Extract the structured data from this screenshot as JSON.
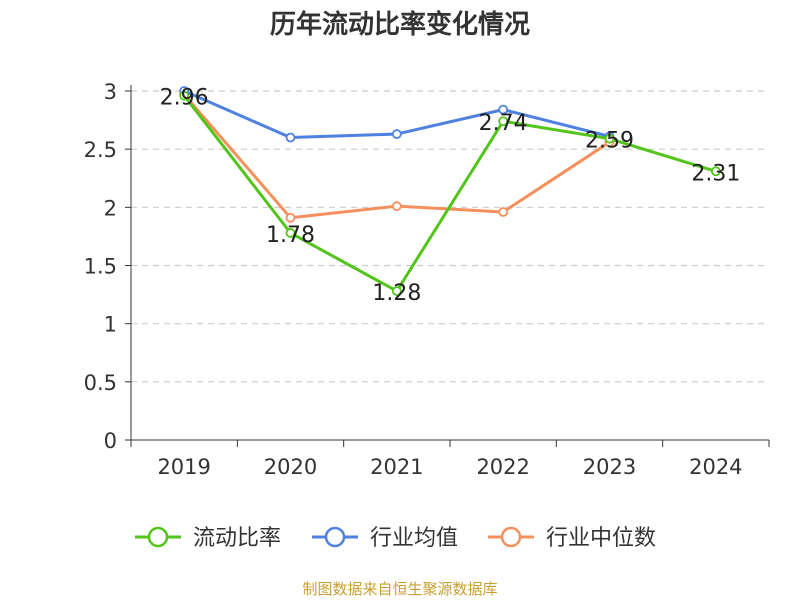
{
  "title": "历年流动比率变化情况",
  "source": "制图数据来自恒生聚源数据库",
  "chart_data": {
    "type": "line",
    "title": "历年流动比率变化情况",
    "categories": [
      "2019",
      "2020",
      "2021",
      "2022",
      "2023",
      "2024"
    ],
    "ylim": [
      0,
      3
    ],
    "yticks": [
      0,
      0.5,
      1,
      1.5,
      2,
      2.5,
      3
    ],
    "ytick_labels": [
      "0",
      "0.5",
      "1",
      "1.5",
      "2",
      "2.5",
      "3"
    ],
    "grid": "horizontal-dashed",
    "legend_position": "bottom",
    "series": [
      {
        "name": "流动比率",
        "color": "#52c41a",
        "values": [
          2.96,
          1.78,
          1.28,
          2.74,
          2.59,
          2.31
        ],
        "labels": [
          "2.96",
          "1.78",
          "1.28",
          "2.74",
          "2.59",
          "2.31"
        ]
      },
      {
        "name": "行业均值",
        "color": "#4f81e0",
        "values": [
          3.0,
          2.6,
          2.63,
          2.84,
          2.61,
          null
        ]
      },
      {
        "name": "行业中位数",
        "color": "#f5905c",
        "values": [
          2.97,
          1.91,
          2.01,
          1.96,
          2.56,
          null
        ]
      }
    ]
  }
}
